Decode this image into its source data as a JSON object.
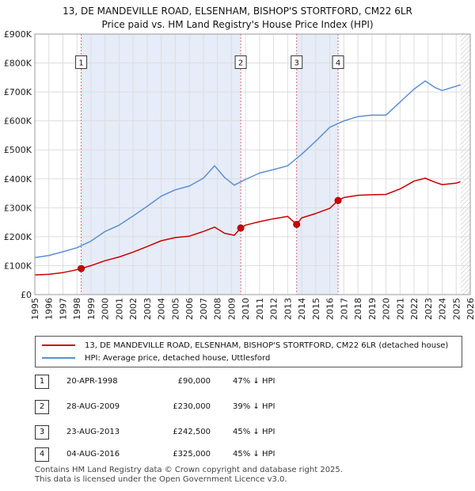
{
  "header": {
    "title_line1": "13, DE MANDEVILLE ROAD, ELSENHAM, BISHOP'S STORTFORD, CM22 6LR",
    "title_line2": "Price paid vs. HM Land Registry's House Price Index (HPI)"
  },
  "chart_data": {
    "type": "line",
    "title": "13, DE MANDEVILLE ROAD, ELSENHAM, BISHOP'S STORTFORD, CM22 6LR — Price paid vs. HM Land Registry's House Price Index (HPI)",
    "xlabel": "",
    "ylabel": "",
    "xlim": [
      1995,
      2026
    ],
    "ylim": [
      0,
      900000
    ],
    "x_ticks": [
      1995,
      1996,
      1997,
      1998,
      1999,
      2000,
      2001,
      2002,
      2003,
      2004,
      2005,
      2006,
      2007,
      2008,
      2009,
      2010,
      2011,
      2012,
      2013,
      2014,
      2015,
      2016,
      2017,
      2018,
      2019,
      2020,
      2021,
      2022,
      2023,
      2024,
      2025,
      2026
    ],
    "y_ticks": [
      {
        "value": 0,
        "label": "£0"
      },
      {
        "value": 100000,
        "label": "£100K"
      },
      {
        "value": 200000,
        "label": "£200K"
      },
      {
        "value": 300000,
        "label": "£300K"
      },
      {
        "value": 400000,
        "label": "£400K"
      },
      {
        "value": 500000,
        "label": "£500K"
      },
      {
        "value": 600000,
        "label": "£600K"
      },
      {
        "value": 700000,
        "label": "£700K"
      },
      {
        "value": 800000,
        "label": "£800K"
      },
      {
        "value": 900000,
        "label": "£900K"
      }
    ],
    "grid": true,
    "data_end_year": 2025.3,
    "series": [
      {
        "name": "13, DE MANDEVILLE ROAD, ELSENHAM, BISHOP'S STORTFORD, CM22 6LR (detached house)",
        "color": "#cc0000",
        "x": [
          1995.0,
          1996.0,
          1997.0,
          1997.8,
          1998.3,
          1999.0,
          2000.0,
          2001.0,
          2002.0,
          2003.0,
          2004.0,
          2005.0,
          2006.0,
          2007.0,
          2007.8,
          2008.5,
          2009.2,
          2009.66,
          2010.0,
          2011.0,
          2012.0,
          2013.0,
          2013.64,
          2014.0,
          2015.0,
          2016.0,
          2016.59,
          2017.0,
          2018.0,
          2019.0,
          2020.0,
          2021.0,
          2022.0,
          2022.8,
          2023.5,
          2024.0,
          2025.0,
          2025.3
        ],
        "values": [
          68000,
          70000,
          76000,
          84000,
          90000,
          100000,
          117000,
          130000,
          147000,
          166000,
          186000,
          197000,
          202000,
          218000,
          233000,
          212000,
          205000,
          230000,
          240000,
          252000,
          262000,
          270000,
          242500,
          265000,
          280000,
          298000,
          325000,
          335000,
          343000,
          345000,
          346000,
          365000,
          392000,
          402000,
          388000,
          380000,
          385000,
          390000
        ]
      },
      {
        "name": "HPI: Average price, detached house, Uttlesford",
        "color": "#5b8fd4",
        "x": [
          1995.0,
          1996.0,
          1997.0,
          1998.0,
          1999.0,
          2000.0,
          2001.0,
          2002.0,
          2003.0,
          2004.0,
          2005.0,
          2006.0,
          2007.0,
          2007.8,
          2008.5,
          2009.2,
          2010.0,
          2011.0,
          2012.0,
          2013.0,
          2014.0,
          2015.0,
          2016.0,
          2017.0,
          2018.0,
          2019.0,
          2020.0,
          2021.0,
          2022.0,
          2022.8,
          2023.5,
          2024.0,
          2025.0,
          2025.3
        ],
        "values": [
          128000,
          135000,
          148000,
          162000,
          185000,
          218000,
          240000,
          272000,
          305000,
          340000,
          362000,
          375000,
          402000,
          445000,
          405000,
          378000,
          398000,
          420000,
          432000,
          445000,
          485000,
          530000,
          578000,
          600000,
          615000,
          620000,
          620000,
          665000,
          710000,
          738000,
          715000,
          705000,
          720000,
          725000
        ]
      }
    ],
    "transactions": [
      {
        "id": "1",
        "x": 1998.3,
        "date": "20-APR-1998",
        "price": 90000,
        "price_label": "£90,000",
        "hpi_label": "47% ↓ HPI"
      },
      {
        "id": "2",
        "x": 2009.66,
        "date": "28-AUG-2009",
        "price": 230000,
        "price_label": "£230,000",
        "hpi_label": "39% ↓ HPI"
      },
      {
        "id": "3",
        "x": 2013.64,
        "date": "23-AUG-2013",
        "price": 242500,
        "price_label": "£242,500",
        "hpi_label": "45% ↓ HPI"
      },
      {
        "id": "4",
        "x": 2016.59,
        "date": "04-AUG-2016",
        "price": 325000,
        "price_label": "£325,000",
        "hpi_label": "45% ↓ HPI"
      }
    ]
  },
  "legend": {
    "property_label": "13, DE MANDEVILLE ROAD, ELSENHAM, BISHOP'S STORTFORD, CM22 6LR (detached house)",
    "hpi_label": "HPI: Average price, detached house, Uttlesford",
    "property_color": "#cc0000",
    "hpi_color": "#5b8fd4"
  },
  "footer": {
    "line1": "Contains HM Land Registry data © Crown copyright and database right 2025.",
    "line2": "This data is licensed under the Open Government Licence v3.0."
  }
}
